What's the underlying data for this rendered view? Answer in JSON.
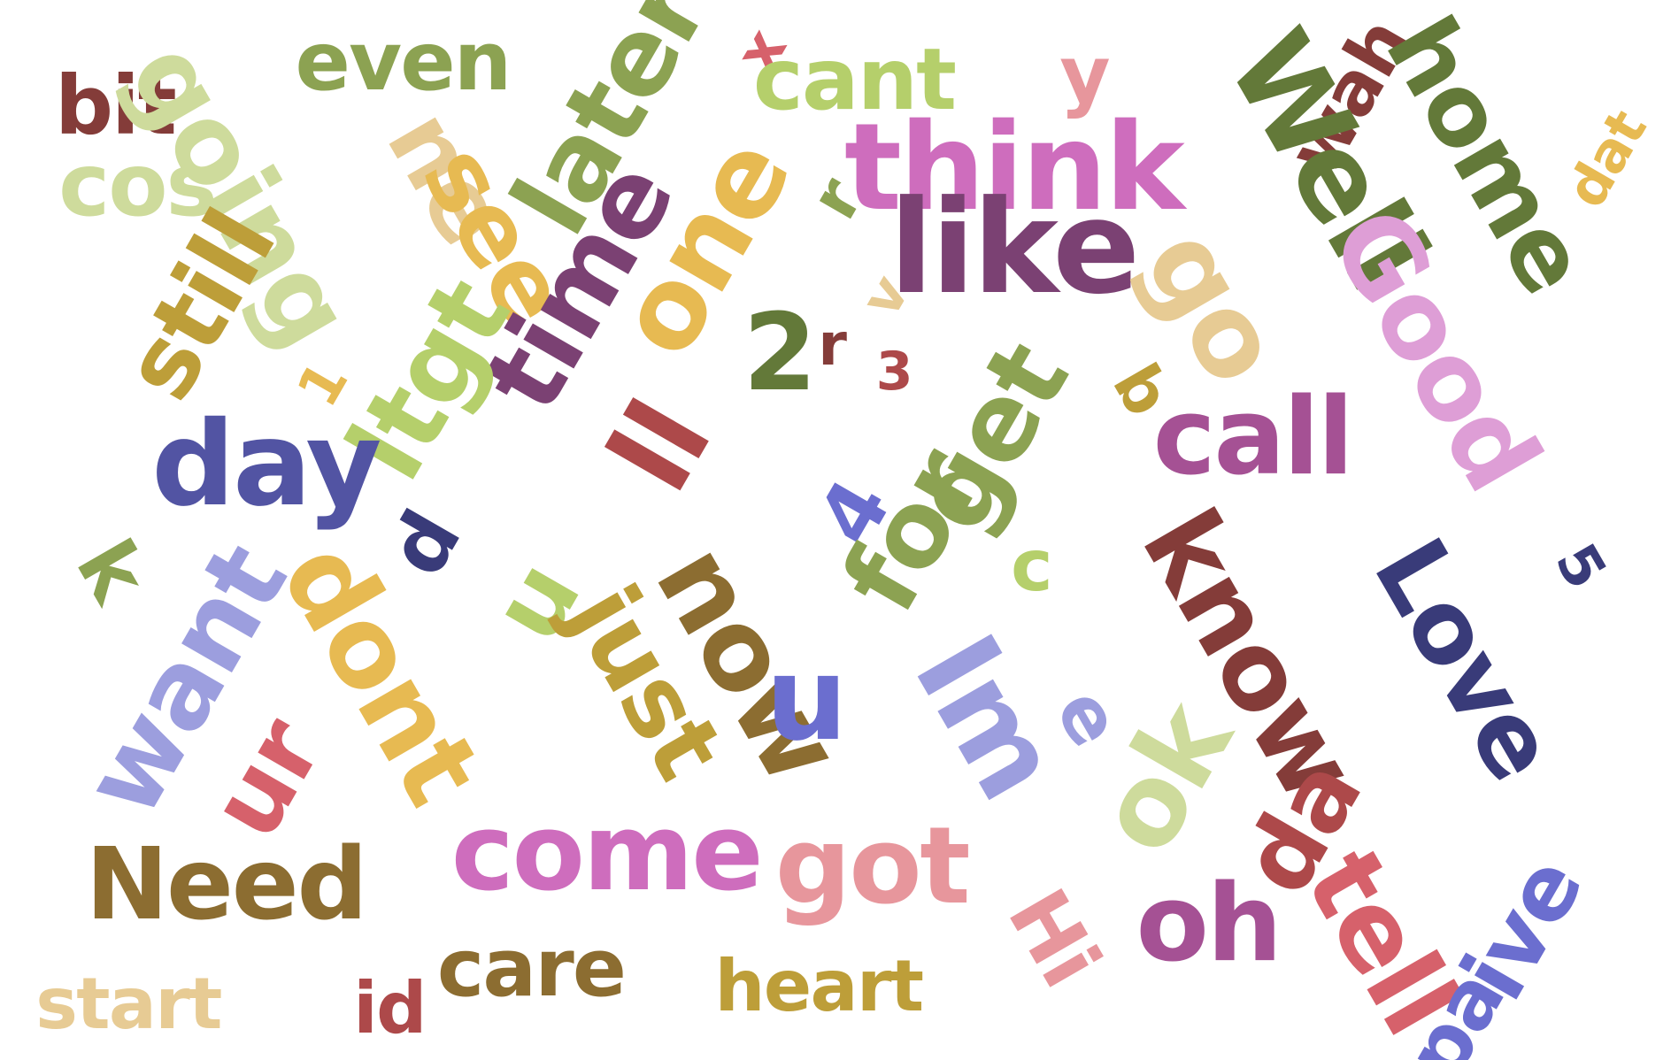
{
  "words": [
    {
      "text": "bit",
      "color": "#843c39"
    },
    {
      "text": "going",
      "color": "#cedb9c"
    },
    {
      "text": "even",
      "color": "#8ca252"
    },
    {
      "text": "later",
      "color": "#8ca252"
    },
    {
      "text": "x",
      "color": "#d6616b"
    },
    {
      "text": "cant",
      "color": "#b5cf6b"
    },
    {
      "text": "y",
      "color": "#e7969c"
    },
    {
      "text": "wah",
      "color": "#843c39"
    },
    {
      "text": "Well",
      "color": "#637939"
    },
    {
      "text": "home",
      "color": "#637939"
    },
    {
      "text": "dat",
      "color": "#e7ba52"
    },
    {
      "text": "cos",
      "color": "#cedb9c"
    },
    {
      "text": "ne",
      "color": "#e7cb94"
    },
    {
      "text": "see",
      "color": "#e7ba52"
    },
    {
      "text": "one",
      "color": "#e7ba52"
    },
    {
      "text": "r",
      "color": "#8ca252"
    },
    {
      "text": "think",
      "color": "#ce6dbd"
    },
    {
      "text": "time",
      "color": "#7b4173"
    },
    {
      "text": "v",
      "color": "#e7cb94"
    },
    {
      "text": "like",
      "color": "#7b4173"
    },
    {
      "text": "go",
      "color": "#e7cb94"
    },
    {
      "text": "Good",
      "color": "#de9ed6"
    },
    {
      "text": "still",
      "color": "#bd9e39"
    },
    {
      "text": "1",
      "color": "#e7ba52"
    },
    {
      "text": "ltgt",
      "color": "#b5cf6b"
    },
    {
      "text": "2",
      "color": "#637939"
    },
    {
      "text": "r",
      "color": "#843c39"
    },
    {
      "text": "3",
      "color": "#ad494a"
    },
    {
      "text": "get",
      "color": "#8ca252"
    },
    {
      "text": "b",
      "color": "#bd9e39"
    },
    {
      "text": "call",
      "color": "#a55194"
    },
    {
      "text": "day",
      "color": "#5254a3"
    },
    {
      "text": "ll",
      "color": "#ad494a"
    },
    {
      "text": "4",
      "color": "#6b6ecf"
    },
    {
      "text": "k",
      "color": "#8ca252"
    },
    {
      "text": "d",
      "color": "#393b79"
    },
    {
      "text": "u",
      "color": "#b5cf6b"
    },
    {
      "text": "just",
      "color": "#bd9e39"
    },
    {
      "text": "for",
      "color": "#8ca252"
    },
    {
      "text": "c",
      "color": "#b5cf6b"
    },
    {
      "text": "know",
      "color": "#843c39"
    },
    {
      "text": "Love",
      "color": "#393b79"
    },
    {
      "text": "5",
      "color": "#393b79"
    },
    {
      "text": "want",
      "color": "#9c9ede"
    },
    {
      "text": "dont",
      "color": "#e7ba52"
    },
    {
      "text": "now",
      "color": "#8c6d31"
    },
    {
      "text": "u",
      "color": "#6b6ecf"
    },
    {
      "text": "Im",
      "color": "#9c9ede"
    },
    {
      "text": "e",
      "color": "#9c9ede"
    },
    {
      "text": "ok",
      "color": "#cedb9c"
    },
    {
      "text": "ur",
      "color": "#d6616b"
    },
    {
      "text": "da",
      "color": "#ad494a"
    },
    {
      "text": "Need",
      "color": "#8c6d31"
    },
    {
      "text": "come",
      "color": "#ce6dbd"
    },
    {
      "text": "got",
      "color": "#e7969c"
    },
    {
      "text": "Hi",
      "color": "#e7969c"
    },
    {
      "text": "oh",
      "color": "#a55194"
    },
    {
      "text": "tell",
      "color": "#d6616b"
    },
    {
      "text": "ive",
      "color": "#6b6ecf"
    },
    {
      "text": "pa",
      "color": "#6b6ecf"
    },
    {
      "text": "start",
      "color": "#e7cb94"
    },
    {
      "text": "id",
      "color": "#ad494a"
    },
    {
      "text": "care",
      "color": "#8c6d31"
    },
    {
      "text": "heart",
      "color": "#bd9e39"
    }
  ]
}
